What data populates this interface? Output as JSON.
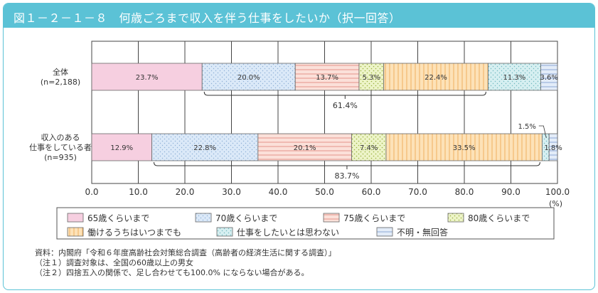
{
  "title": "図１－２－１－８　何歳ごろまで収入を伴う仕事をしたいか（択一回答）",
  "colors": {
    "header": "#5bc2d6",
    "s1": "#f6cfe0",
    "s2": "#dbe9f8",
    "s3": "#fbe0d9",
    "s4": "#edf4c8",
    "s5": "#fde2b8",
    "s6": "#d6eff1",
    "s7": "#e3ecf8"
  },
  "chart_data": {
    "type": "bar",
    "orientation": "horizontal-stacked",
    "xlim": [
      0,
      100
    ],
    "xticks": [
      "0.0",
      "10.0",
      "20.0",
      "30.0",
      "40.0",
      "50.0",
      "60.0",
      "70.0",
      "80.0",
      "90.0",
      "100.0"
    ],
    "xunit": "(%)",
    "legend": [
      "65歳くらいまで",
      "70歳くらいまで",
      "75歳くらいまで",
      "80歳くらいまで",
      "働けるうちはいつまでも",
      "仕事をしたいとは思わない",
      "不明・無回答"
    ],
    "rows": [
      {
        "label": [
          "全体",
          "(n=2,188)"
        ],
        "values": [
          23.7,
          20.0,
          13.7,
          5.3,
          22.4,
          11.3,
          3.6
        ],
        "value_labels": [
          "23.7%",
          "20.0%",
          "13.7%",
          "5.3%",
          "22.4%",
          "11.3%",
          "3.6%"
        ],
        "bracket": {
          "from": 23.7,
          "to": 85.1,
          "label": "61.4%"
        }
      },
      {
        "label": [
          "収入のある",
          "仕事をしている者",
          "(n=935)"
        ],
        "values": [
          12.9,
          22.8,
          20.1,
          7.4,
          33.5,
          1.5,
          1.8
        ],
        "value_labels": [
          "12.9%",
          "22.8%",
          "20.1%",
          "7.4%",
          "33.5%",
          "1.5%",
          "1.8%"
        ],
        "bracket": {
          "from": 12.9,
          "to": 96.7,
          "label": "83.7%"
        }
      }
    ]
  },
  "notes": [
    "資料：内閣府「令和６年度高齢社会対策総合調査（高齢者の経済生活に関する調査）」",
    "（注１）調査対象は、全国の60歳以上の男女",
    "（注２）四捨五入の関係で、足し合わせても100.0% にならない場合がある。"
  ]
}
